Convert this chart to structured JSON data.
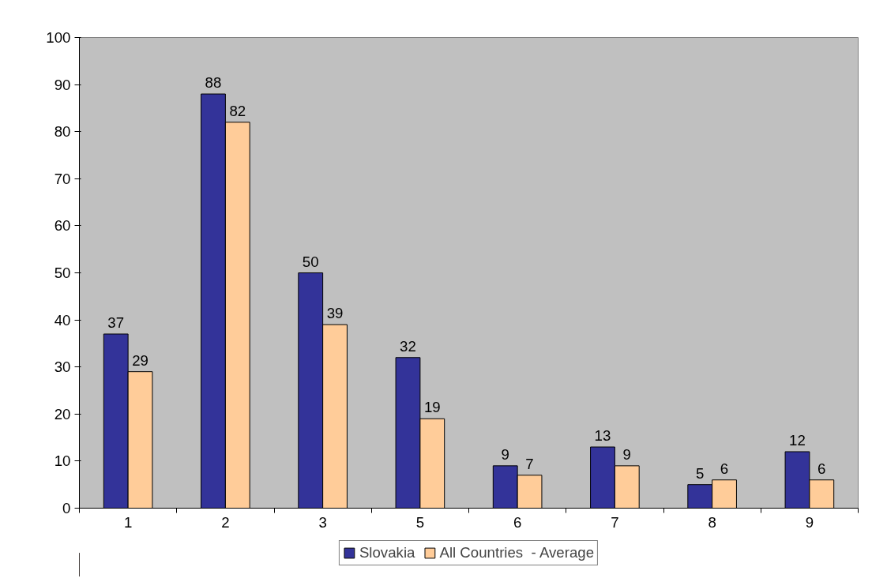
{
  "chart_data": {
    "type": "bar",
    "categories": [
      "1",
      "2",
      "3",
      "5",
      "6",
      "7",
      "8",
      "9"
    ],
    "series": [
      {
        "name": "Slovakia",
        "color": "#333399",
        "values": [
          37,
          88,
          50,
          32,
          9,
          13,
          5,
          12
        ]
      },
      {
        "name": "All Countries  - Average",
        "color": "#ffcc99",
        "values": [
          29,
          82,
          39,
          19,
          7,
          9,
          6,
          6
        ]
      }
    ],
    "ylim": [
      0,
      100
    ],
    "yticks": [
      0,
      10,
      20,
      30,
      40,
      50,
      60,
      70,
      80,
      90,
      100
    ],
    "grid": false,
    "data_labels": true,
    "legend": "bottom"
  }
}
